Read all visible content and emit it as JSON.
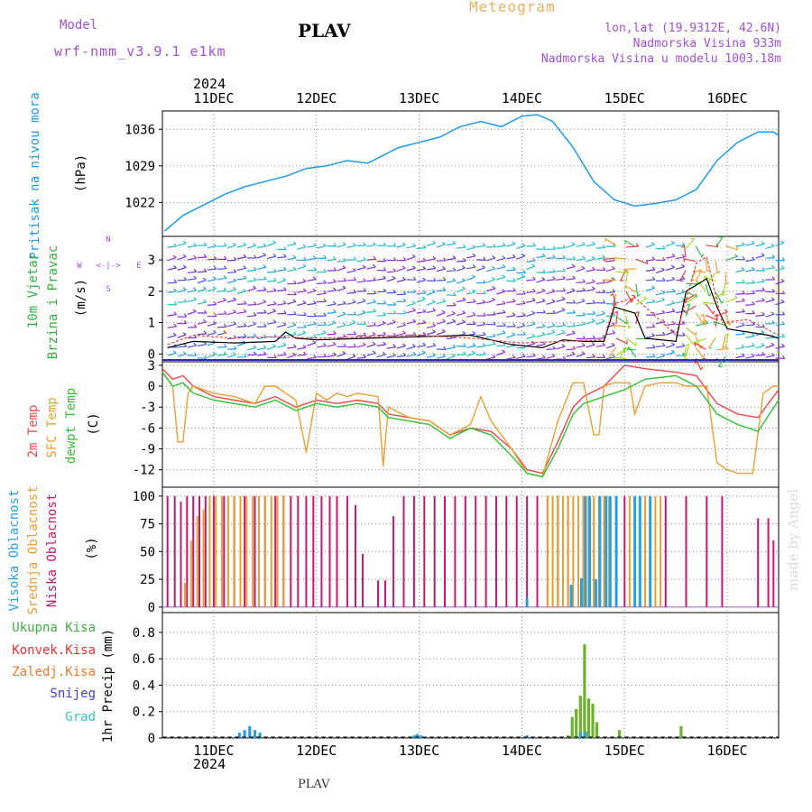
{
  "header": {
    "meteogram_label": "Meteogram",
    "station": "PLAV",
    "model_label": "Model",
    "model_name": "wrf-nmm_v3.9.1 e1km",
    "coords": "lon,lat (19.9312E, 42.6N)",
    "elevation": "Nadmorska Visina 933m",
    "model_elevation": "Nadmorska Visina u modelu 1003.18m",
    "year": "2024",
    "footer_station": "PLAV",
    "watermark": "made by Angel"
  },
  "colors": {
    "pressure": "#1e9be8",
    "temp2m": "#e84a4a",
    "sfc_temp": "#e8a030",
    "dewpt": "#30c030",
    "high_cloud": "#2a9fe0",
    "mid_cloud": "#e8a030",
    "low_cloud": "#c81870",
    "total_precip": "#40b040",
    "conv_precip": "#e03030",
    "frozen_rain": "#f07828",
    "snow": "#4040d0",
    "hail": "#30c8c8",
    "wind_mean": "#000000",
    "wind_gust": "#e84040"
  },
  "labels": {
    "pressure": [
      "Pritisak na nivou mora",
      "(hPa)"
    ],
    "wind": [
      "10m Vjetar",
      "Brzina i Pravac",
      "(m/s)"
    ],
    "compass": [
      "N",
      "W",
      "<-|->",
      "E",
      "S"
    ],
    "temp": [
      "2m Temp",
      "SFC Temp",
      "dewpt Temp",
      "(C)"
    ],
    "cloud": [
      "Visoka Oblacnost",
      "Srednja Oblacnost",
      "Niska Oblacnost",
      "(%)"
    ],
    "precip_legend": [
      "Ukupna Kisa",
      "Konvek.Kisa",
      "Zaledj.Kisa",
      "Snijeg",
      "Grad"
    ],
    "precip_axis": "1hr Precip (mm)"
  },
  "chart_data": [
    {
      "type": "line",
      "name": "pressure",
      "xlabel": "",
      "ylabel": "(hPa)",
      "x_range": [
        10.5,
        16.5
      ],
      "ylim": [
        1015.5,
        1039.5
      ],
      "yticks": [
        1022,
        1029,
        1036
      ],
      "grid": true,
      "x_ticks": [
        "11DEC",
        "12DEC",
        "13DEC",
        "14DEC",
        "15DEC",
        "16DEC"
      ],
      "series": [
        {
          "x": [
            10.52,
            10.7,
            10.9,
            11.1,
            11.3,
            11.5,
            11.7,
            11.9,
            12.1,
            12.3,
            12.5,
            12.6,
            12.8,
            13.0,
            13.2,
            13.4,
            13.6,
            13.8,
            14.0,
            14.15,
            14.3,
            14.5,
            14.7,
            14.9,
            15.1,
            15.3,
            15.5,
            15.7,
            15.9,
            16.1,
            16.3,
            16.45,
            16.5
          ],
          "y": [
            1016.5,
            1019.5,
            1021.5,
            1023.5,
            1025,
            1026,
            1027,
            1028.5,
            1029,
            1030,
            1029.5,
            1030.5,
            1032.5,
            1033.5,
            1034.5,
            1036.5,
            1037.5,
            1036.5,
            1038.5,
            1038.8,
            1037.5,
            1032.5,
            1026,
            1022.5,
            1021.3,
            1021.8,
            1022.5,
            1024.5,
            1030,
            1033.5,
            1035.5,
            1035.5,
            1034.8
          ]
        }
      ]
    },
    {
      "type": "line",
      "name": "wind",
      "ylabel": "(m/s)",
      "x_range": [
        10.5,
        16.5
      ],
      "ylim": [
        -0.25,
        3.75
      ],
      "yticks": [
        0,
        1,
        2,
        3
      ],
      "grid": true,
      "series": [
        {
          "name": "mean",
          "x": [
            10.55,
            10.8,
            11.2,
            11.6,
            11.7,
            11.8,
            12.0,
            12.5,
            13.0,
            13.5,
            13.9,
            14.2,
            14.4,
            14.6,
            14.8,
            14.9,
            15.1,
            15.2,
            15.5,
            15.6,
            15.8,
            15.9,
            16.0,
            16.2,
            16.4,
            16.5
          ],
          "y": [
            0.2,
            0.4,
            0.35,
            0.4,
            0.7,
            0.5,
            0.45,
            0.5,
            0.55,
            0.6,
            0.3,
            0.2,
            0.45,
            0.4,
            0.4,
            1.5,
            1.3,
            0.5,
            0.4,
            2.0,
            2.4,
            1.5,
            0.8,
            0.7,
            0.6,
            0.5
          ]
        },
        {
          "name": "gust",
          "x": [
            10.55,
            10.8,
            11.2,
            11.6,
            12.0,
            12.5,
            13.0,
            13.5,
            14.0,
            14.4,
            14.8,
            14.9,
            15.1,
            15.5,
            15.7,
            15.8,
            15.95,
            16.2,
            16.5
          ],
          "y": [
            0.3,
            0.6,
            0.5,
            0.55,
            0.5,
            0.55,
            0.6,
            0.5,
            0.35,
            0.4,
            0.45,
            1.6,
            1.8,
            0.6,
            2.9,
            3.1,
            1.0,
            1.1,
            0.6
          ]
        }
      ]
    },
    {
      "type": "line",
      "name": "temperature",
      "ylabel": "(C)",
      "x_range": [
        10.5,
        16.5
      ],
      "ylim": [
        -14.5,
        3.5
      ],
      "yticks": [
        -12,
        -9,
        -6,
        -3,
        0,
        3
      ],
      "grid": true,
      "series": [
        {
          "name": "2m Temp",
          "x": [
            10.5,
            10.6,
            10.7,
            10.8,
            11.0,
            11.2,
            11.4,
            11.6,
            11.8,
            12.0,
            12.2,
            12.4,
            12.6,
            12.7,
            12.9,
            13.1,
            13.3,
            13.5,
            13.7,
            13.9,
            14.05,
            14.2,
            14.35,
            14.5,
            14.6,
            14.8,
            15.0,
            15.2,
            15.5,
            15.7,
            15.9,
            16.1,
            16.3,
            16.5
          ],
          "y": [
            2.5,
            1.0,
            1.5,
            0.0,
            -1.5,
            -2.0,
            -2.5,
            -1.5,
            -3.0,
            -2.0,
            -2.5,
            -2.0,
            -2.5,
            -4.0,
            -4.5,
            -5.0,
            -7.0,
            -6.0,
            -6.5,
            -9.0,
            -12.0,
            -12.5,
            -8.0,
            -3.0,
            -1.5,
            0.0,
            3.0,
            2.5,
            2.0,
            1.5,
            -2.5,
            -4.0,
            -4.5,
            -0.5
          ]
        },
        {
          "name": "SFC Temp",
          "x": [
            10.5,
            10.6,
            10.65,
            10.7,
            10.75,
            10.8,
            11.0,
            11.2,
            11.4,
            11.5,
            11.6,
            11.8,
            11.9,
            12.0,
            12.1,
            12.2,
            12.3,
            12.4,
            12.6,
            12.65,
            12.7,
            12.9,
            13.1,
            13.3,
            13.5,
            13.6,
            13.7,
            13.9,
            14.05,
            14.2,
            14.35,
            14.5,
            14.6,
            14.7,
            14.75,
            14.8,
            14.9,
            15.05,
            15.1,
            15.2,
            15.35,
            15.5,
            15.6,
            15.8,
            15.9,
            16.0,
            16.1,
            16.25,
            16.35,
            16.45,
            16.5
          ],
          "y": [
            2.0,
            0.0,
            -8.0,
            -8.0,
            -1.0,
            0.0,
            -1.0,
            -1.5,
            -2.5,
            0.0,
            0.0,
            -2.0,
            -9.5,
            -1.0,
            -2.0,
            -1.0,
            -1.5,
            -1.0,
            -1.5,
            -11.5,
            -3.0,
            -4.5,
            -5.0,
            -7.0,
            -5.5,
            -1.5,
            -5.0,
            -9.0,
            -12.5,
            -13.0,
            -5.0,
            0.5,
            0.5,
            -7.0,
            -7.0,
            0.0,
            0.5,
            0.5,
            -4.0,
            0.0,
            0.5,
            0.5,
            0.0,
            0.0,
            -11.0,
            -12.0,
            -12.5,
            -12.5,
            -1.0,
            0.0,
            0.0
          ]
        },
        {
          "name": "dewpt Temp",
          "x": [
            10.5,
            10.6,
            10.7,
            10.8,
            11.0,
            11.2,
            11.4,
            11.6,
            11.8,
            12.0,
            12.2,
            12.4,
            12.6,
            12.7,
            12.9,
            13.1,
            13.3,
            13.5,
            13.7,
            13.9,
            14.05,
            14.2,
            14.35,
            14.5,
            14.6,
            14.8,
            15.0,
            15.2,
            15.5,
            15.7,
            15.9,
            16.1,
            16.3,
            16.5
          ],
          "y": [
            2.0,
            0.0,
            0.5,
            -1.0,
            -2.0,
            -2.5,
            -3.0,
            -2.0,
            -3.5,
            -2.5,
            -3.0,
            -2.5,
            -3.0,
            -4.5,
            -5.0,
            -5.5,
            -7.5,
            -6.0,
            -7.0,
            -10.0,
            -12.5,
            -13.0,
            -9.0,
            -4.0,
            -2.5,
            -1.5,
            -0.5,
            1.0,
            1.5,
            0.0,
            -4.0,
            -5.5,
            -6.5,
            -2.0
          ]
        }
      ]
    },
    {
      "type": "bar",
      "name": "cloud",
      "ylabel": "(%)",
      "x_range": [
        10.5,
        16.5
      ],
      "ylim": [
        -5,
        108
      ],
      "yticks": [
        0,
        25,
        50,
        75,
        100
      ],
      "grid": true,
      "series": [
        {
          "name": "Niska Oblacnost",
          "x": [
            10.55,
            10.62,
            10.68,
            10.74,
            10.8,
            10.86,
            10.92,
            11.0,
            11.1,
            11.2,
            11.3,
            11.4,
            11.5,
            11.6,
            11.68,
            11.75,
            11.82,
            11.9,
            11.97,
            12.05,
            12.13,
            12.2,
            12.3,
            12.38,
            12.45,
            12.6,
            12.67,
            12.75,
            12.85,
            12.95,
            13.05,
            13.15,
            13.25,
            13.35,
            13.45,
            13.55,
            13.65,
            13.75,
            13.85,
            13.95,
            14.05,
            14.15,
            14.25,
            14.35,
            14.45,
            14.6,
            14.8,
            15.0,
            15.2,
            15.4,
            15.6,
            15.8,
            15.95,
            16.3,
            16.4,
            16.45
          ],
          "y": [
            100,
            100,
            95,
            100,
            100,
            100,
            100,
            100,
            100,
            100,
            100,
            100,
            100,
            100,
            100,
            100,
            100,
            100,
            100,
            100,
            100,
            100,
            100,
            92,
            48,
            24,
            24,
            82,
            100,
            100,
            100,
            100,
            100,
            100,
            100,
            100,
            100,
            100,
            100,
            100,
            100,
            100,
            100,
            100,
            100,
            100,
            100,
            100,
            100,
            100,
            100,
            100,
            100,
            80,
            80,
            60
          ]
        },
        {
          "name": "Srednja Oblacnost",
          "x": [
            10.72,
            10.78,
            10.84,
            10.9,
            10.96,
            11.02,
            11.08,
            11.14,
            11.2,
            11.26,
            11.32,
            11.38,
            11.44,
            11.5,
            11.56,
            11.62,
            11.68,
            14.25,
            14.3,
            14.35,
            14.4,
            14.45,
            14.5,
            14.55,
            14.6,
            14.65,
            14.7,
            14.75,
            14.8,
            14.85,
            15.05,
            15.1,
            15.15,
            15.2,
            15.25,
            15.3,
            15.35
          ],
          "y": [
            22,
            60,
            82,
            88,
            100,
            100,
            100,
            100,
            100,
            100,
            100,
            100,
            100,
            100,
            100,
            100,
            100,
            100,
            100,
            100,
            100,
            100,
            100,
            100,
            100,
            100,
            100,
            100,
            100,
            100,
            100,
            100,
            100,
            100,
            100,
            100,
            100
          ]
        },
        {
          "name": "Visoka Oblacnost",
          "x": [
            14.05,
            14.48,
            14.58,
            14.62,
            14.66,
            14.72,
            14.76,
            14.82,
            14.86,
            14.92,
            15.1,
            15.15,
            15.25
          ],
          "y": [
            8,
            20,
            26,
            100,
            100,
            25,
            100,
            100,
            100,
            100,
            100,
            100,
            100
          ]
        }
      ]
    },
    {
      "type": "bar",
      "name": "precip",
      "ylabel": "1hr Precip (mm)",
      "x_range": [
        10.5,
        16.5
      ],
      "ylim": [
        0,
        0.95
      ],
      "yticks": [
        0,
        0.2,
        0.4,
        0.6,
        0.8
      ],
      "grid": true,
      "series": [
        {
          "name": "Ukupna Kisa",
          "x": [
            14.45,
            14.49,
            14.53,
            14.57,
            14.61,
            14.65,
            14.69,
            14.73,
            14.95,
            15.55
          ],
          "y": [
            0.02,
            0.16,
            0.22,
            0.32,
            0.71,
            0.3,
            0.26,
            0.12,
            0.06,
            0.09
          ]
        },
        {
          "name": "Snijeg",
          "x": [
            11.25,
            11.3,
            11.35,
            11.4,
            11.45,
            12.95,
            12.98,
            13.02,
            14.05,
            14.57,
            14.62
          ],
          "y": [
            0.04,
            0.06,
            0.09,
            0.06,
            0.04,
            0.02,
            0.03,
            0.02,
            0.02,
            0.04,
            0.05
          ]
        }
      ]
    }
  ]
}
